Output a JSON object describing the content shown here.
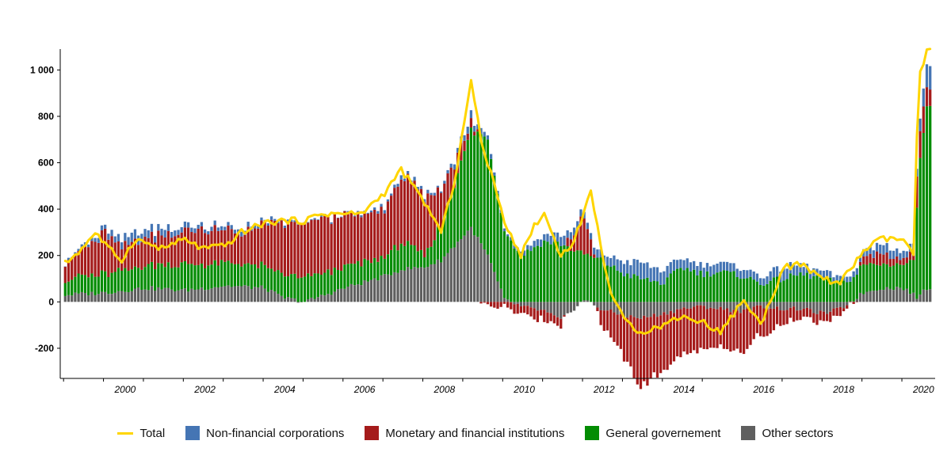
{
  "chart_data": {
    "type": "bar",
    "stacked": true,
    "title": "",
    "xlabel": "",
    "ylabel": "",
    "ylim": [
      -330,
      1090
    ],
    "xlim": [
      "1999-01",
      "2020-09"
    ],
    "yticks": [
      -200,
      0,
      200,
      400,
      600,
      800,
      1000
    ],
    "ytick_labels": [
      "-200",
      "0",
      "200",
      "400",
      "600",
      "800",
      "1 000"
    ],
    "xticks": [
      "2000",
      "2002",
      "2004",
      "2006",
      "2008",
      "2010",
      "2012",
      "2014",
      "2016",
      "2018",
      "2020"
    ],
    "grid": false,
    "legend_position": "bottom",
    "x_start": "1999-01",
    "frequency": "monthly",
    "series": [
      {
        "name": "Non-financial corporations",
        "color": "#4575B4",
        "anchors": [
          [
            "1999-01",
            5
          ],
          [
            "2000-01",
            20
          ],
          [
            "2000-10",
            40
          ],
          [
            "2001-06",
            30
          ],
          [
            "2002-06",
            15
          ],
          [
            "2003-06",
            20
          ],
          [
            "2004-06",
            10
          ],
          [
            "2005-06",
            5
          ],
          [
            "2006-06",
            5
          ],
          [
            "2007-06",
            15
          ],
          [
            "2008-06",
            10
          ],
          [
            "2009-03",
            30
          ],
          [
            "2010-01",
            10
          ],
          [
            "2011-01",
            30
          ],
          [
            "2011-06",
            40
          ],
          [
            "2012-01",
            25
          ],
          [
            "2012-09",
            40
          ],
          [
            "2013-06",
            70
          ],
          [
            "2014-06",
            40
          ],
          [
            "2015-06",
            40
          ],
          [
            "2016-06",
            30
          ],
          [
            "2017-01",
            50
          ],
          [
            "2017-06",
            40
          ],
          [
            "2018-01",
            30
          ],
          [
            "2018-06",
            20
          ],
          [
            "2019-01",
            30
          ],
          [
            "2019-06",
            40
          ],
          [
            "2020-01",
            30
          ],
          [
            "2020-05",
            30
          ],
          [
            "2020-07",
            80
          ],
          [
            "2020-08",
            100
          ]
        ]
      },
      {
        "name": "Monetary and financial institutions",
        "color": "#A51B1B",
        "anchors": [
          [
            "1999-01",
            80
          ],
          [
            "1999-06",
            110
          ],
          [
            "2000-01",
            180
          ],
          [
            "2000-06",
            100
          ],
          [
            "2001-06",
            130
          ],
          [
            "2002-06",
            150
          ],
          [
            "2003-06",
            130
          ],
          [
            "2004-06",
            220
          ],
          [
            "2005-06",
            240
          ],
          [
            "2006-06",
            210
          ],
          [
            "2007-01",
            200
          ],
          [
            "2007-06",
            290
          ],
          [
            "2008-01",
            250
          ],
          [
            "2008-06",
            150
          ],
          [
            "2009-01",
            50
          ],
          [
            "2009-06",
            -10
          ],
          [
            "2010-01",
            -20
          ],
          [
            "2010-06",
            -30
          ],
          [
            "2011-01",
            -40
          ],
          [
            "2011-06",
            -30
          ],
          [
            "2012-01",
            160
          ],
          [
            "2012-06",
            -60
          ],
          [
            "2013-01",
            -180
          ],
          [
            "2013-06",
            -300
          ],
          [
            "2014-01",
            -240
          ],
          [
            "2014-06",
            -200
          ],
          [
            "2015-01",
            -190
          ],
          [
            "2015-06",
            -170
          ],
          [
            "2016-01",
            -180
          ],
          [
            "2016-06",
            -120
          ],
          [
            "2017-01",
            -60
          ],
          [
            "2017-06",
            -50
          ],
          [
            "2018-01",
            -40
          ],
          [
            "2018-06",
            -30
          ],
          [
            "2019-01",
            20
          ],
          [
            "2019-06",
            50
          ],
          [
            "2020-01",
            30
          ],
          [
            "2020-04",
            40
          ],
          [
            "2020-05",
            150
          ],
          [
            "2020-06",
            120
          ],
          [
            "2020-08",
            80
          ]
        ]
      },
      {
        "name": "General governement",
        "color": "#038C03",
        "anchors": [
          [
            "1999-01",
            70
          ],
          [
            "2000-01",
            80
          ],
          [
            "2001-01",
            100
          ],
          [
            "2002-01",
            110
          ],
          [
            "2003-01",
            100
          ],
          [
            "2004-01",
            90
          ],
          [
            "2005-01",
            100
          ],
          [
            "2006-01",
            90
          ],
          [
            "2007-01",
            80
          ],
          [
            "2007-06",
            120
          ],
          [
            "2008-01",
            50
          ],
          [
            "2008-06",
            150
          ],
          [
            "2009-03",
            420
          ],
          [
            "2009-08",
            500
          ],
          [
            "2010-01",
            300
          ],
          [
            "2010-06",
            200
          ],
          [
            "2011-01",
            260
          ],
          [
            "2011-06",
            250
          ],
          [
            "2012-01",
            200
          ],
          [
            "2012-06",
            180
          ],
          [
            "2013-01",
            120
          ],
          [
            "2013-06",
            100
          ],
          [
            "2014-01",
            80
          ],
          [
            "2014-06",
            150
          ],
          [
            "2015-01",
            120
          ],
          [
            "2015-06",
            130
          ],
          [
            "2016-01",
            110
          ],
          [
            "2016-06",
            80
          ],
          [
            "2017-01",
            100
          ],
          [
            "2017-06",
            120
          ],
          [
            "2018-01",
            100
          ],
          [
            "2018-06",
            80
          ],
          [
            "2019-01",
            120
          ],
          [
            "2019-06",
            110
          ],
          [
            "2020-01",
            100
          ],
          [
            "2020-04",
            150
          ],
          [
            "2020-05",
            400
          ],
          [
            "2020-06",
            600
          ],
          [
            "2020-08",
            780
          ]
        ]
      },
      {
        "name": "Other sectors",
        "color": "#5F5F5F",
        "anchors": [
          [
            "1999-01",
            30
          ],
          [
            "2000-01",
            40
          ],
          [
            "2001-01",
            60
          ],
          [
            "2002-01",
            50
          ],
          [
            "2003-01",
            70
          ],
          [
            "2004-01",
            60
          ],
          [
            "2004-06",
            20
          ],
          [
            "2005-01",
            0
          ],
          [
            "2006-01",
            60
          ],
          [
            "2007-01",
            110
          ],
          [
            "2007-06",
            140
          ],
          [
            "2008-01",
            150
          ],
          [
            "2008-06",
            180
          ],
          [
            "2009-03",
            320
          ],
          [
            "2009-08",
            200
          ],
          [
            "2010-01",
            10
          ],
          [
            "2010-06",
            -20
          ],
          [
            "2011-01",
            -40
          ],
          [
            "2011-06",
            -80
          ],
          [
            "2012-01",
            10
          ],
          [
            "2012-06",
            -30
          ],
          [
            "2013-01",
            -60
          ],
          [
            "2013-06",
            -70
          ],
          [
            "2014-01",
            -50
          ],
          [
            "2014-06",
            -30
          ],
          [
            "2015-01",
            -20
          ],
          [
            "2015-06",
            -30
          ],
          [
            "2016-01",
            -40
          ],
          [
            "2016-06",
            -20
          ],
          [
            "2017-01",
            -30
          ],
          [
            "2017-06",
            -30
          ],
          [
            "2018-01",
            -50
          ],
          [
            "2018-06",
            -30
          ],
          [
            "2019-01",
            40
          ],
          [
            "2019-06",
            60
          ],
          [
            "2020-01",
            60
          ],
          [
            "2020-05",
            20
          ],
          [
            "2020-08",
            60
          ]
        ]
      }
    ],
    "total": {
      "name": "Total",
      "color": "#FFD500",
      "anchors": [
        [
          "1999-01",
          165
        ],
        [
          "1999-06",
          230
        ],
        [
          "1999-10",
          300
        ],
        [
          "2000-02",
          230
        ],
        [
          "2000-06",
          180
        ],
        [
          "2000-10",
          270
        ],
        [
          "2001-06",
          230
        ],
        [
          "2002-01",
          270
        ],
        [
          "2002-06",
          230
        ],
        [
          "2003-01",
          240
        ],
        [
          "2003-06",
          300
        ],
        [
          "2004-01",
          340
        ],
        [
          "2004-06",
          350
        ],
        [
          "2005-01",
          350
        ],
        [
          "2005-06",
          380
        ],
        [
          "2006-01",
          380
        ],
        [
          "2006-06",
          380
        ],
        [
          "2007-01",
          470
        ],
        [
          "2007-06",
          570
        ],
        [
          "2008-01",
          430
        ],
        [
          "2008-06",
          300
        ],
        [
          "2008-10",
          520
        ],
        [
          "2009-01",
          780
        ],
        [
          "2009-03",
          950
        ],
        [
          "2009-06",
          700
        ],
        [
          "2009-10",
          500
        ],
        [
          "2010-01",
          350
        ],
        [
          "2010-06",
          200
        ],
        [
          "2010-10",
          330
        ],
        [
          "2011-01",
          380
        ],
        [
          "2011-06",
          200
        ],
        [
          "2011-10",
          260
        ],
        [
          "2012-03",
          480
        ],
        [
          "2012-06",
          240
        ],
        [
          "2012-09",
          40
        ],
        [
          "2013-01",
          -80
        ],
        [
          "2013-06",
          -130
        ],
        [
          "2014-01",
          -100
        ],
        [
          "2014-06",
          -60
        ],
        [
          "2015-01",
          -90
        ],
        [
          "2015-06",
          -130
        ],
        [
          "2016-01",
          10
        ],
        [
          "2016-06",
          -100
        ],
        [
          "2017-01",
          150
        ],
        [
          "2017-06",
          160
        ],
        [
          "2018-01",
          100
        ],
        [
          "2018-06",
          80
        ],
        [
          "2019-01",
          220
        ],
        [
          "2019-06",
          270
        ],
        [
          "2020-01",
          270
        ],
        [
          "2020-04",
          200
        ],
        [
          "2020-05",
          700
        ],
        [
          "2020-06",
          980
        ],
        [
          "2020-08",
          1080
        ]
      ]
    }
  },
  "legend": {
    "total": "Total",
    "nfc": "Non-financial corporations",
    "mfi": "Monetary and financial institutions",
    "gov": "General governement",
    "other": "Other sectors"
  },
  "colors": {
    "nfc": "#4575B4",
    "mfi": "#A51B1B",
    "gov": "#038C03",
    "other": "#5F5F5F",
    "total": "#FFD500"
  }
}
